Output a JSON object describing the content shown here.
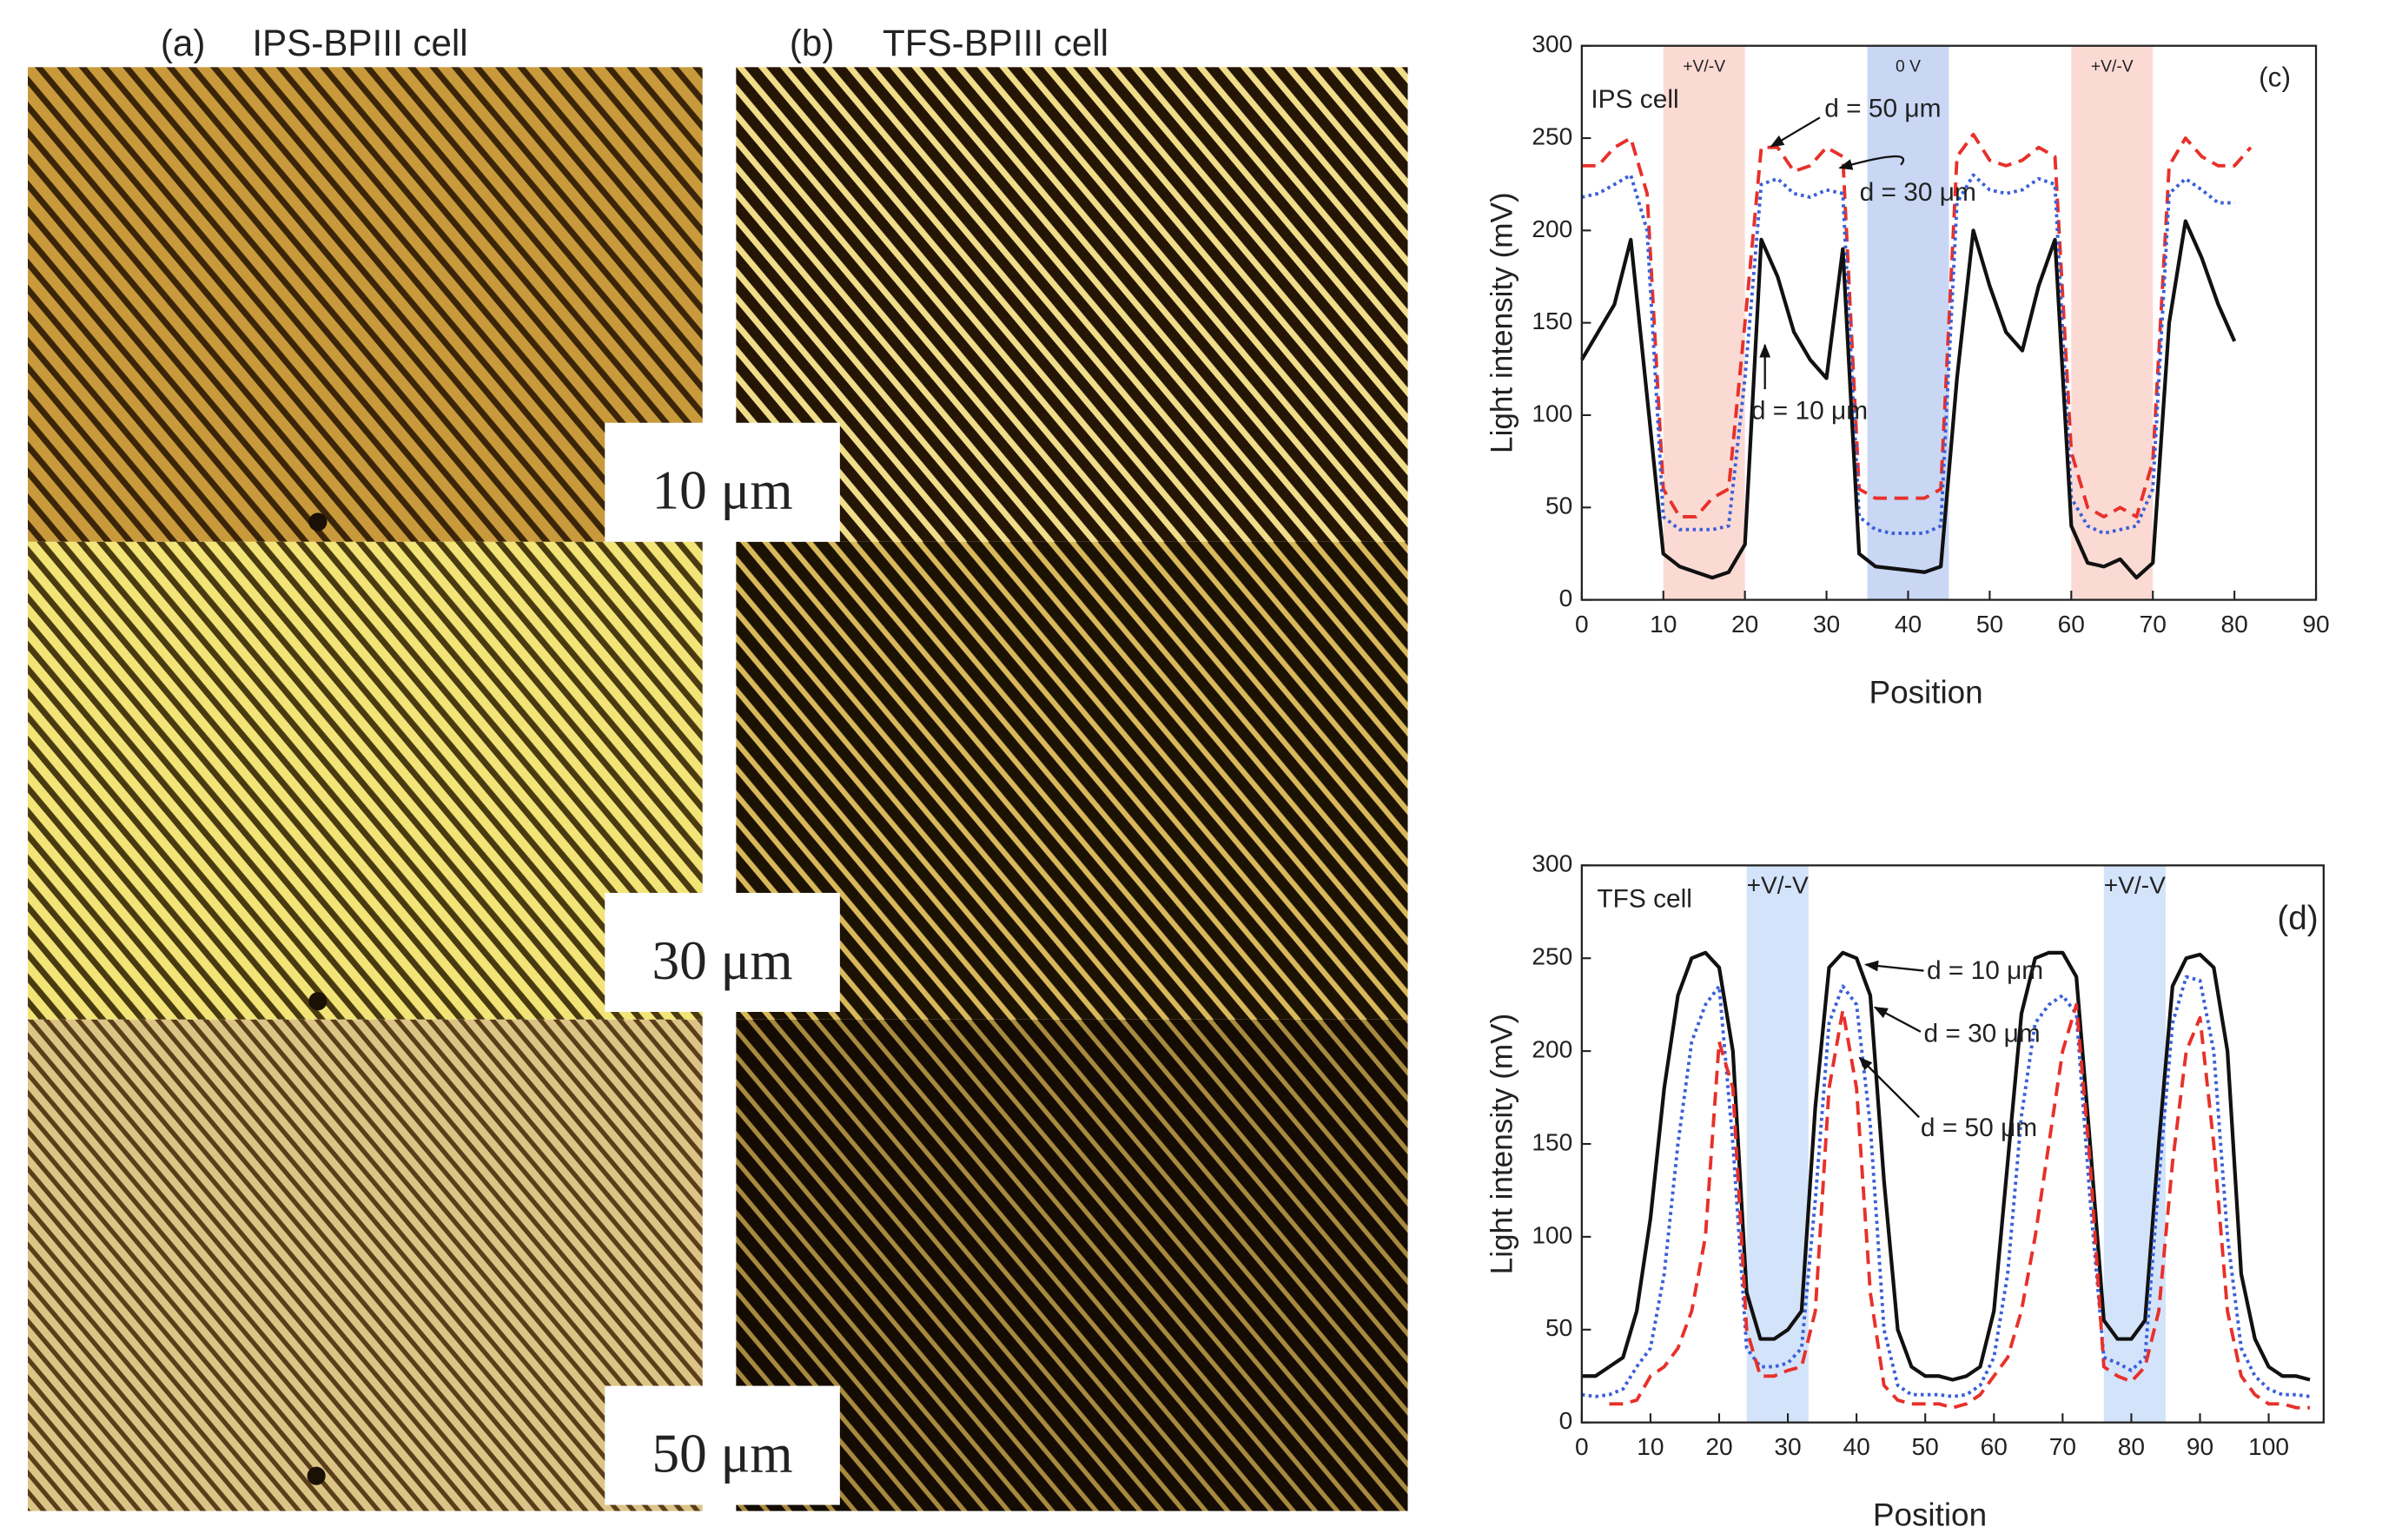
{
  "micrographs": [
    {
      "label": "(a)",
      "title": "IPS-BPIII cell"
    },
    {
      "label": "(b)",
      "title": "TFS-BPIII cell"
    }
  ],
  "thickness_labels": [
    "10 μm",
    "30 μm",
    "50 μm"
  ],
  "chart_data": [
    {
      "type": "line",
      "panel_label": "(c)",
      "cell_label": "IPS cell",
      "x_label": "Position",
      "y_label": "Light intensity (mV)",
      "xlim": [
        0,
        90
      ],
      "xticks": [
        0,
        10,
        20,
        30,
        40,
        50,
        60,
        70,
        80,
        90
      ],
      "ylim": [
        0,
        300
      ],
      "yticks": [
        0,
        50,
        100,
        150,
        200,
        250,
        300
      ],
      "shaded_regions": [
        {
          "start": 10,
          "end": 20,
          "color": "#fbdad4",
          "label": "+V/-V"
        },
        {
          "start": 35,
          "end": 45,
          "color": "#c9d7f5",
          "label": "0 V"
        },
        {
          "start": 60,
          "end": 70,
          "color": "#fbdad4",
          "label": "+V/-V"
        }
      ],
      "x": [
        0,
        2,
        4,
        6,
        8,
        10,
        12,
        14,
        16,
        18,
        20,
        22,
        24,
        26,
        28,
        30,
        32,
        34,
        36,
        38,
        40,
        42,
        44,
        46,
        48,
        50,
        52,
        54,
        56,
        58,
        60,
        62,
        64,
        66,
        68,
        70,
        72,
        74,
        76,
        78,
        80,
        82
      ],
      "series": [
        {
          "name": "d = 50 μm",
          "color": "#e8302a",
          "style": "dashed",
          "values": [
            235,
            235,
            245,
            250,
            220,
            60,
            45,
            45,
            55,
            60,
            150,
            245,
            245,
            232,
            235,
            245,
            240,
            60,
            55,
            55,
            55,
            55,
            60,
            240,
            252,
            238,
            235,
            238,
            245,
            240,
            80,
            50,
            45,
            50,
            45,
            75,
            235,
            250,
            240,
            235,
            235,
            245
          ]
        },
        {
          "name": "d = 30 μm",
          "color": "#3a5fd8",
          "style": "dotted",
          "values": [
            218,
            220,
            225,
            230,
            200,
            45,
            38,
            38,
            38,
            40,
            120,
            225,
            228,
            220,
            218,
            222,
            220,
            45,
            38,
            36,
            36,
            36,
            40,
            215,
            230,
            222,
            220,
            222,
            228,
            225,
            55,
            40,
            36,
            38,
            40,
            60,
            220,
            228,
            222,
            215,
            215,
            null
          ]
        },
        {
          "name": "d = 10 μm",
          "color": "#111111",
          "style": "solid",
          "values": [
            130,
            145,
            160,
            195,
            110,
            25,
            18,
            15,
            12,
            15,
            30,
            195,
            175,
            145,
            130,
            120,
            190,
            25,
            18,
            17,
            16,
            15,
            18,
            120,
            200,
            170,
            145,
            135,
            170,
            195,
            40,
            20,
            18,
            22,
            12,
            20,
            150,
            205,
            185,
            160,
            140,
            null
          ]
        }
      ]
    },
    {
      "type": "line",
      "panel_label": "(d)",
      "cell_label": "TFS cell",
      "x_label": "Position",
      "y_label": "Light intensity (mV)",
      "xlim": [
        0,
        108
      ],
      "xticks": [
        0,
        10,
        20,
        30,
        40,
        50,
        60,
        70,
        80,
        90,
        100
      ],
      "ylim": [
        0,
        300
      ],
      "yticks": [
        0,
        50,
        100,
        150,
        200,
        250,
        300
      ],
      "shaded_regions": [
        {
          "start": 24,
          "end": 33,
          "color": "#d3e3fa",
          "label": "+V/-V"
        },
        {
          "start": 76,
          "end": 85,
          "color": "#d3e3fa",
          "label": "+V/-V"
        }
      ],
      "x": [
        0,
        2,
        4,
        6,
        8,
        10,
        12,
        14,
        16,
        18,
        20,
        22,
        24,
        26,
        28,
        30,
        32,
        34,
        36,
        38,
        40,
        42,
        44,
        46,
        48,
        50,
        52,
        54,
        56,
        58,
        60,
        62,
        64,
        66,
        68,
        70,
        72,
        74,
        76,
        78,
        80,
        82,
        84,
        86,
        88,
        90,
        92,
        94,
        96,
        98,
        100,
        102,
        104,
        106
      ],
      "series": [
        {
          "name": "d = 10 μm",
          "color": "#111111",
          "style": "solid",
          "values": [
            25,
            25,
            30,
            35,
            60,
            110,
            180,
            230,
            250,
            253,
            245,
            200,
            70,
            45,
            45,
            50,
            60,
            170,
            245,
            253,
            250,
            230,
            130,
            50,
            30,
            25,
            25,
            23,
            25,
            30,
            60,
            140,
            220,
            250,
            253,
            253,
            240,
            150,
            55,
            45,
            45,
            55,
            150,
            235,
            250,
            252,
            245,
            200,
            80,
            45,
            30,
            25,
            25,
            23
          ]
        },
        {
          "name": "d = 30 μm",
          "color": "#3a5fd8",
          "style": "dotted",
          "values": [
            15,
            14,
            15,
            18,
            30,
            40,
            80,
            150,
            205,
            225,
            235,
            150,
            40,
            30,
            30,
            32,
            40,
            120,
            215,
            235,
            225,
            160,
            50,
            20,
            15,
            15,
            15,
            14,
            15,
            20,
            35,
            80,
            165,
            215,
            225,
            230,
            220,
            120,
            35,
            32,
            28,
            35,
            130,
            215,
            240,
            238,
            200,
            100,
            40,
            25,
            18,
            15,
            15,
            14
          ]
        },
        {
          "name": "d = 50 μm",
          "color": "#e8302a",
          "style": "dashed",
          "values": [
            null,
            null,
            10,
            10,
            12,
            25,
            30,
            40,
            60,
            100,
            205,
            180,
            50,
            25,
            25,
            28,
            30,
            60,
            180,
            222,
            180,
            70,
            20,
            12,
            10,
            10,
            10,
            8,
            10,
            15,
            25,
            35,
            60,
            100,
            150,
            200,
            225,
            140,
            30,
            25,
            22,
            30,
            60,
            140,
            200,
            218,
            150,
            60,
            25,
            15,
            10,
            10,
            8,
            8
          ]
        }
      ]
    }
  ]
}
